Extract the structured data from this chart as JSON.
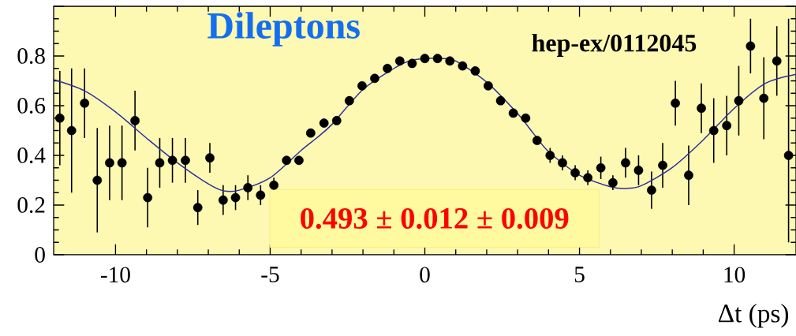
{
  "chart_data": {
    "type": "scatter",
    "title": "Dileptons",
    "xlabel": "Δt (ps)",
    "annotations": [
      "hep-ex/0112045",
      "0.493 ± 0.012 ± 0.009"
    ],
    "xlim": [
      -12,
      12
    ],
    "ylim": [
      0,
      1
    ],
    "xticks": [
      -10,
      -5,
      0,
      5,
      10
    ],
    "yticks": [
      0,
      0.2,
      0.4,
      0.6,
      0.8,
      {
        "value": 1,
        "label": null
      }
    ],
    "marker": "circle",
    "series": [
      {
        "color": "#000000",
        "x": [
          -11.8,
          -11.42,
          -11.0,
          -10.59,
          -10.19,
          -9.79,
          -9.37,
          -8.96,
          -8.57,
          -8.16,
          -7.74,
          -7.34,
          -6.95,
          -6.52,
          -6.12,
          -5.72,
          -5.31,
          -4.88,
          -4.47,
          -4.07,
          -3.69,
          -3.26,
          -2.85,
          -2.44,
          -2.03,
          -1.62,
          -1.21,
          -0.81,
          -0.41,
          0,
          0.41,
          0.81,
          1.22,
          1.63,
          2.05,
          2.45,
          2.86,
          3.26,
          3.63,
          4.05,
          4.45,
          4.86,
          5.27,
          5.69,
          6.08,
          6.49,
          6.91,
          7.33,
          7.69,
          8.1,
          8.53,
          8.94,
          9.34,
          9.76,
          10.15,
          10.53,
          10.96,
          11.38,
          11.76
        ],
        "values": [
          0.55,
          0.5,
          0.61,
          0.3,
          0.37,
          0.37,
          0.54,
          0.23,
          0.37,
          0.38,
          0.38,
          0.19,
          0.39,
          0.22,
          0.23,
          0.27,
          0.24,
          0.28,
          0.38,
          0.38,
          0.49,
          0.53,
          0.54,
          0.62,
          0.68,
          0.71,
          0.75,
          0.78,
          0.77,
          0.79,
          0.79,
          0.78,
          0.76,
          0.74,
          0.68,
          0.62,
          0.57,
          0.55,
          0.46,
          0.4,
          0.37,
          0.33,
          0.31,
          0.35,
          0.29,
          0.37,
          0.34,
          0.26,
          0.36,
          0.61,
          0.32,
          0.59,
          0.5,
          0.52,
          0.62,
          0.84,
          0.63,
          0.78,
          0.4
        ],
        "errors": [
          0.19,
          0.25,
          0.14,
          0.21,
          0.15,
          0.15,
          0.12,
          0.12,
          0.1,
          0.09,
          0.09,
          0.07,
          0.06,
          0.06,
          0.05,
          0.05,
          0.04,
          0.03,
          null,
          null,
          null,
          null,
          null,
          null,
          null,
          null,
          null,
          null,
          null,
          null,
          null,
          null,
          null,
          null,
          null,
          null,
          null,
          null,
          null,
          0.03,
          0.03,
          0.03,
          0.03,
          0.045,
          0.03,
          0.06,
          0.06,
          0.075,
          0.09,
          0.09,
          0.12,
          0.1,
          0.13,
          0.12,
          0.14,
          0.11,
          0.165,
          0.14,
          [
            0.05,
            0.95
          ]
        ]
      },
      {
        "type": "line",
        "marker": "none",
        "color": "#2e2e9e",
        "x": [
          -12,
          -11,
          -10,
          -9,
          -8,
          -7,
          -6.5,
          -6,
          -5,
          -4,
          -3.5,
          -3,
          -2,
          -1,
          -0.5,
          0,
          0.5,
          1,
          2,
          3,
          3.5,
          4,
          5,
          6,
          6.5,
          7,
          8,
          9,
          10,
          11,
          12
        ],
        "values": [
          0.705,
          0.66,
          0.575,
          0.47,
          0.37,
          0.285,
          0.257,
          0.26,
          0.31,
          0.42,
          0.47,
          0.525,
          0.665,
          0.75,
          0.78,
          0.79,
          0.79,
          0.78,
          0.695,
          0.568,
          0.49,
          0.415,
          0.32,
          0.274,
          0.267,
          0.278,
          0.351,
          0.462,
          0.589,
          0.689,
          0.726
        ]
      }
    ]
  }
}
